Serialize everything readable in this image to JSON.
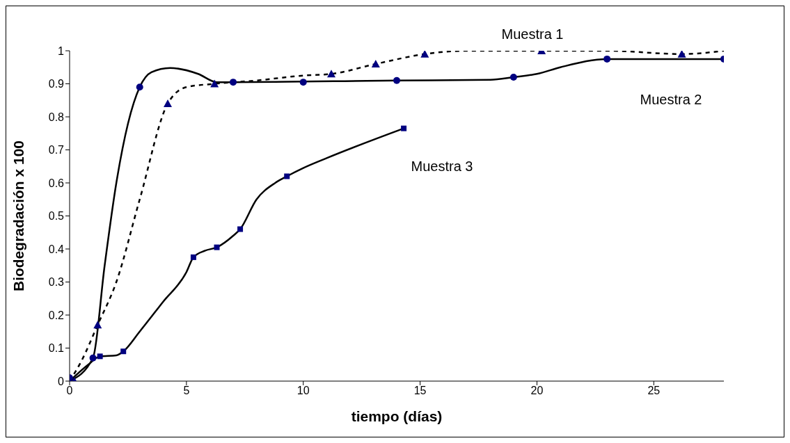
{
  "chart_data": {
    "type": "line",
    "xlabel": "tiempo (días)",
    "ylabel": "Biodegradación x 100",
    "xlim": [
      0,
      28
    ],
    "xticks": [
      0,
      5,
      10,
      15,
      20,
      25
    ],
    "ylim": [
      0,
      1
    ],
    "yticks": [
      0,
      0.1,
      0.2,
      0.3,
      0.4,
      0.5,
      0.6,
      0.7,
      0.8,
      0.9,
      1
    ],
    "series": [
      {
        "color": "#000000",
        "line_style": "dashed",
        "marker": "none",
        "x": [
          0,
          0.5,
          1.2,
          2,
          3,
          4.2,
          5,
          6.2,
          8,
          10,
          11.2,
          13.1,
          15.2,
          17,
          20.2,
          23,
          26.2,
          28
        ],
        "values": [
          0,
          0.06,
          0.17,
          0.3,
          0.55,
          0.84,
          0.89,
          0.9,
          0.91,
          0.925,
          0.93,
          0.96,
          0.99,
          1.0,
          1.0,
          1.0,
          0.99,
          1.0
        ]
      },
      {
        "color": "#000000",
        "line_style": "solid",
        "marker": "none",
        "x": [
          0,
          1,
          1.5,
          2,
          2.5,
          3,
          3.5,
          4.3,
          5.5,
          6.3,
          7,
          14,
          18,
          19,
          20,
          21,
          23,
          28
        ],
        "values": [
          0,
          0.07,
          0.35,
          0.6,
          0.78,
          0.89,
          0.935,
          0.948,
          0.93,
          0.905,
          0.905,
          0.91,
          0.912,
          0.92,
          0.93,
          0.95,
          0.975,
          0.975
        ]
      },
      {
        "color": "#000000",
        "line_style": "solid",
        "marker": "none",
        "x": [
          0,
          0.8,
          1.3,
          2,
          2.3,
          3,
          4,
          5,
          5.3,
          5.8,
          6.3,
          7,
          7.3,
          8,
          8.8,
          9.3,
          10,
          11,
          14.3
        ],
        "values": [
          0,
          0.05,
          0.075,
          0.078,
          0.09,
          0.15,
          0.24,
          0.33,
          0.375,
          0.395,
          0.405,
          0.44,
          0.46,
          0.55,
          0.6,
          0.62,
          0.645,
          0.675,
          0.765
        ]
      },
      {
        "type": "scatter",
        "color": "#000080",
        "marker": "triangle",
        "x": [
          0.2,
          1.2,
          4.2,
          6.2,
          11.2,
          13.1,
          15.2,
          20.2,
          26.2
        ],
        "values": [
          0,
          0.17,
          0.84,
          0.9,
          0.93,
          0.96,
          0.99,
          1.0,
          0.99
        ]
      },
      {
        "type": "scatter",
        "color": "#000080",
        "marker": "circle",
        "x": [
          0,
          1,
          3,
          7,
          10,
          14,
          19,
          23,
          28
        ],
        "values": [
          0.01,
          0.07,
          0.89,
          0.905,
          0.905,
          0.91,
          0.92,
          0.975,
          0.975
        ]
      },
      {
        "type": "scatter",
        "color": "#000080",
        "marker": "square",
        "x": [
          1.3,
          2.3,
          5.3,
          6.3,
          7.3,
          9.3,
          14.3
        ],
        "values": [
          0.075,
          0.09,
          0.375,
          0.405,
          0.46,
          0.62,
          0.765
        ]
      }
    ],
    "annotations": [
      "Muestra 1",
      "Muestra 2",
      "Muestra 3"
    ]
  }
}
